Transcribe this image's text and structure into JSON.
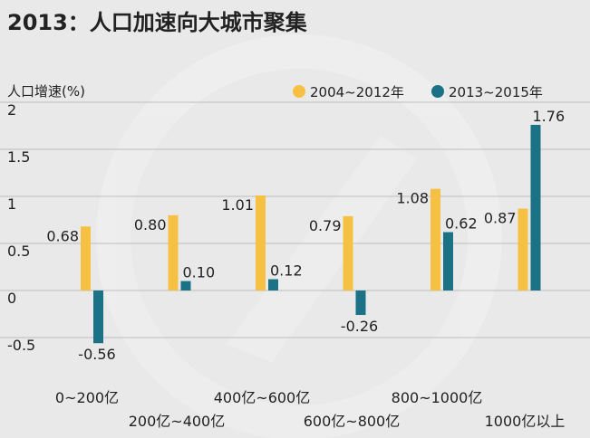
{
  "chart_data": {
    "type": "bar",
    "title": "2013：人口加速向大城市聚集",
    "ylabel": "人口增速(%)",
    "xlabel": "",
    "ylim": [
      -0.75,
      2
    ],
    "yticks": [
      "2",
      "1.5",
      "1",
      "0.5",
      "0",
      "-0.5"
    ],
    "ytick_values": [
      2,
      1.5,
      1,
      0.5,
      0,
      -0.5
    ],
    "grid": true,
    "legend_position": "top-right",
    "categories": [
      "0~200亿",
      "200亿~400亿",
      "400亿~600亿",
      "600亿~800亿",
      "800~1000亿",
      "1000亿以上"
    ],
    "series": [
      {
        "name": "2004~2012年",
        "color": "#f6c142",
        "values": [
          0.68,
          0.8,
          1.01,
          0.79,
          1.08,
          0.87
        ],
        "labels": [
          "0.68",
          "0.80",
          "1.01",
          "0.79",
          "1.08",
          "0.87"
        ]
      },
      {
        "name": "2013~2015年",
        "color": "#1b7186",
        "values": [
          -0.56,
          0.1,
          0.12,
          -0.26,
          0.62,
          1.76
        ],
        "labels": [
          "-0.56",
          "0.10",
          "0.12",
          "-0.26",
          "0.62",
          "1.76"
        ]
      }
    ]
  }
}
